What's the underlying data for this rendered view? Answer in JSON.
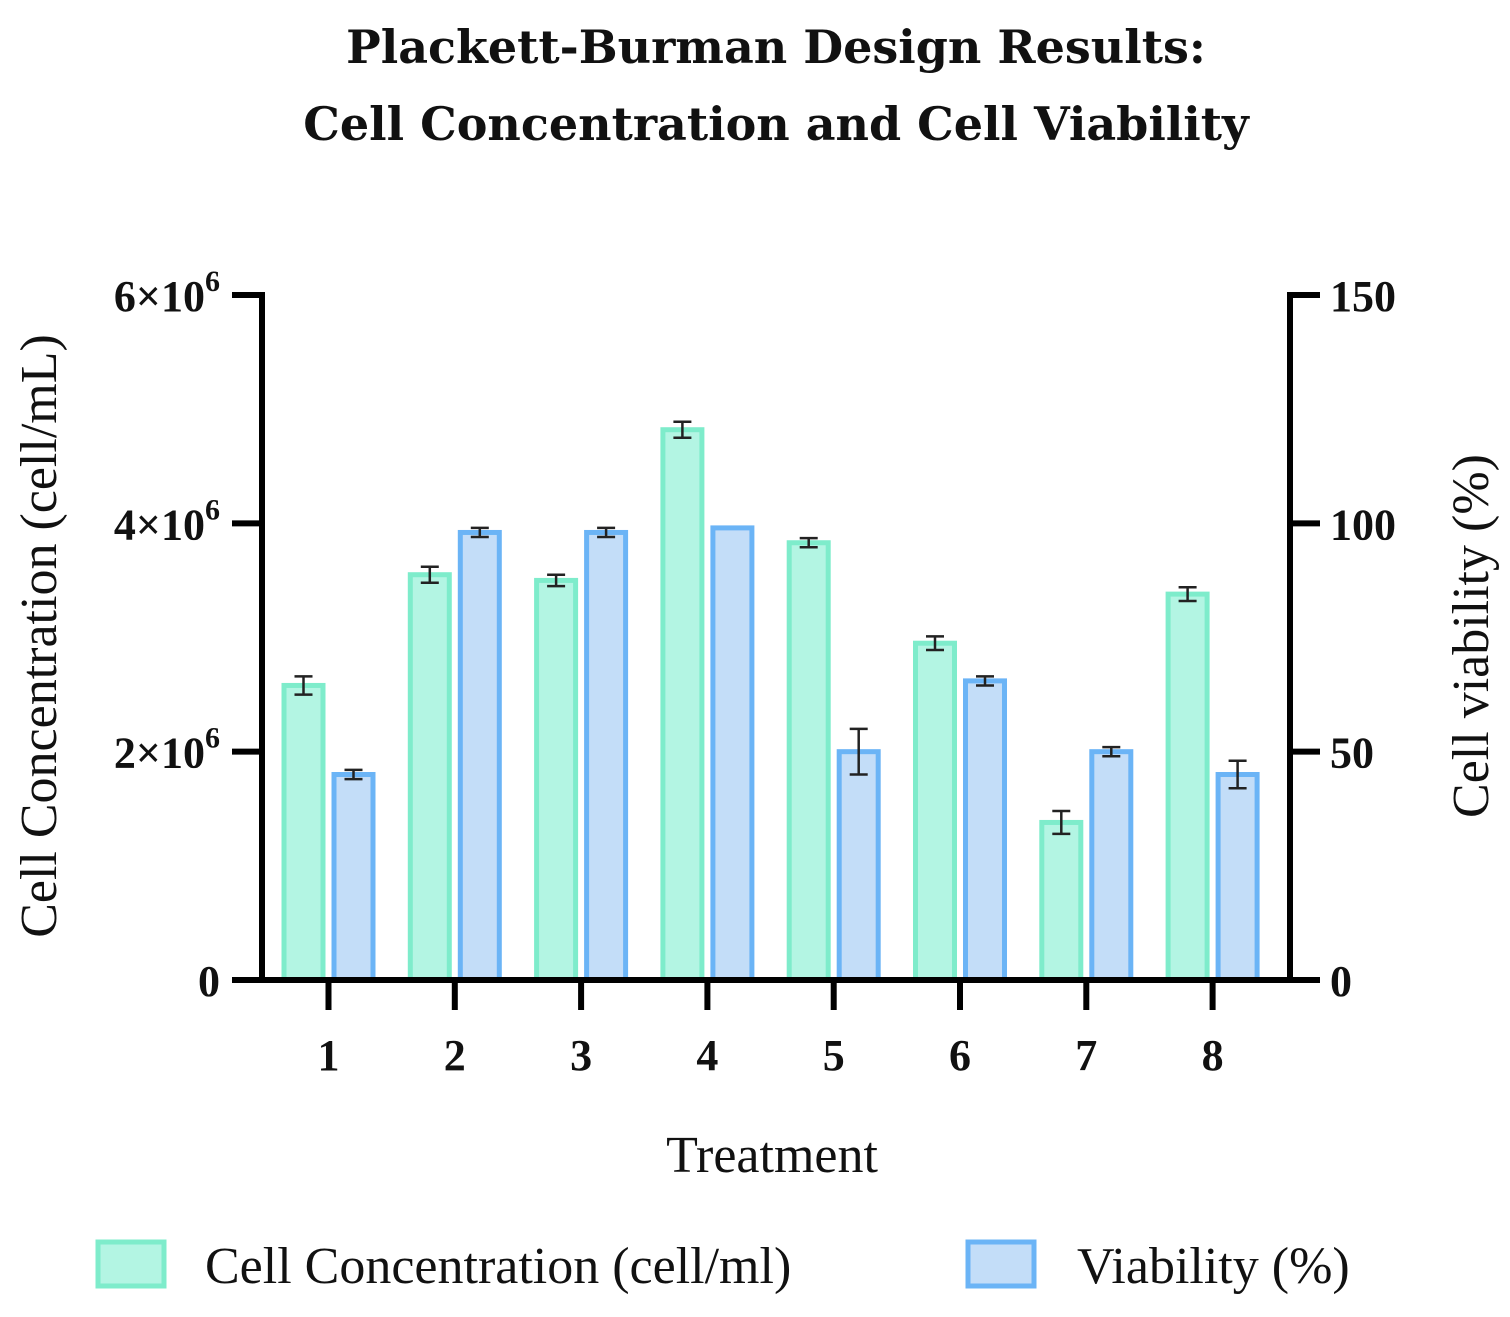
{
  "chart_data": {
    "type": "bar",
    "title": "Plackett-Burman Design Results:",
    "subtitle": "Cell Concentration and Cell Viability",
    "xlabel": "Treatment",
    "ylabel_left": "Cell Concentration (cell/mL)",
    "ylabel_right": "Cell viability (%)",
    "categories": [
      "1",
      "2",
      "3",
      "4",
      "5",
      "6",
      "7",
      "8"
    ],
    "left_axis": {
      "min": 0,
      "max": 6000000,
      "ticks": [
        {
          "value": 0,
          "mantissa": "0",
          "exp": ""
        },
        {
          "value": 2000000,
          "mantissa": "2×10",
          "exp": "6"
        },
        {
          "value": 4000000,
          "mantissa": "4×10",
          "exp": "6"
        },
        {
          "value": 6000000,
          "mantissa": "6×10",
          "exp": "6"
        }
      ]
    },
    "right_axis": {
      "min": 0,
      "max": 150,
      "ticks": [
        "0",
        "50",
        "100",
        "150"
      ]
    },
    "series": [
      {
        "name": "Cell Concentration (cell/ml)",
        "axis": "left",
        "fill": "#b3f5e3",
        "stroke": "#7eeccb",
        "values": [
          2580000,
          3550000,
          3500000,
          4820000,
          3830000,
          2950000,
          1380000,
          3380000
        ],
        "errors": [
          80000,
          70000,
          50000,
          70000,
          40000,
          60000,
          100000,
          60000
        ]
      },
      {
        "name": "Viability (%)",
        "axis": "right",
        "fill": "#c3ddf8",
        "stroke": "#6bb4f6",
        "values": [
          45,
          98,
          98,
          99,
          50,
          65.5,
          50,
          45
        ],
        "errors": [
          1,
          1,
          1,
          0,
          5,
          1,
          1,
          3
        ]
      }
    ],
    "legend": "bottom",
    "grid": false
  }
}
